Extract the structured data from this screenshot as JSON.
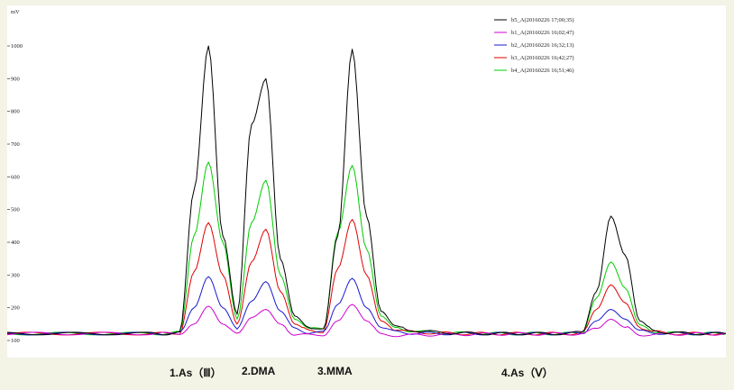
{
  "chart_data": {
    "type": "line",
    "ylabel": "mV",
    "ylim": [
      100,
      1000
    ],
    "yticks": [
      100,
      200,
      300,
      400,
      500,
      600,
      700,
      800,
      900,
      1000
    ],
    "grid": false,
    "legend_position": "top-right",
    "x": [
      0,
      20,
      40,
      60,
      80,
      100,
      110,
      120,
      130,
      140,
      150,
      160,
      170,
      180,
      190,
      200,
      210,
      220,
      230,
      240,
      250,
      260,
      270,
      280,
      290,
      300,
      310,
      320,
      330,
      340,
      350,
      360,
      370,
      380,
      390,
      400,
      410,
      420,
      430,
      440,
      450,
      460,
      470,
      480,
      490,
      500
    ],
    "series": [
      {
        "name": "b5_A(20160226 17;00;35)",
        "color": "#000000",
        "values": [
          121,
          121,
          121,
          121,
          121,
          121,
          121,
          124,
          560,
          1000,
          420,
          180,
          760,
          900,
          350,
          175,
          140,
          132,
          420,
          990,
          480,
          190,
          145,
          132,
          128,
          125,
          123,
          122,
          121,
          121,
          121,
          121,
          121,
          121,
          121,
          125,
          250,
          480,
          360,
          160,
          130,
          124,
          122,
          121,
          121,
          121
        ]
      },
      {
        "name": "b1_A(20160226 16;02;47)",
        "color": "#d000d0",
        "values": [
          121,
          121,
          121,
          121,
          121,
          121,
          121,
          122,
          150,
          205,
          150,
          118,
          170,
          195,
          150,
          118,
          116,
          118,
          160,
          210,
          160,
          118,
          116,
          116,
          117,
          118,
          118,
          119,
          119,
          120,
          120,
          120,
          120,
          120,
          120,
          121,
          135,
          165,
          140,
          118,
          118,
          119,
          120,
          120,
          120,
          121
        ]
      },
      {
        "name": "b2_A(20160226 16;32;13)",
        "color": "#1a1acc",
        "values": [
          121,
          121,
          121,
          121,
          121,
          121,
          121,
          122,
          200,
          295,
          200,
          138,
          220,
          280,
          190,
          138,
          124,
          124,
          210,
          290,
          200,
          140,
          126,
          123,
          122,
          121,
          121,
          121,
          121,
          121,
          121,
          121,
          121,
          121,
          121,
          122,
          160,
          195,
          165,
          128,
          123,
          122,
          121,
          121,
          121,
          121
        ]
      },
      {
        "name": "b3_A(20160226 16;42;27)",
        "color": "#e00000",
        "values": [
          121,
          121,
          121,
          121,
          121,
          121,
          121,
          123,
          310,
          460,
          300,
          150,
          340,
          440,
          250,
          150,
          130,
          128,
          320,
          470,
          300,
          160,
          134,
          126,
          124,
          122,
          122,
          121,
          121,
          121,
          121,
          121,
          121,
          121,
          121,
          123,
          195,
          270,
          215,
          140,
          126,
          122,
          121,
          121,
          121,
          121
        ]
      },
      {
        "name": "b4_A(20160226 16;51;46)",
        "color": "#00cc00",
        "values": [
          121,
          121,
          121,
          121,
          121,
          121,
          121,
          124,
          420,
          645,
          400,
          165,
          460,
          590,
          300,
          165,
          138,
          132,
          430,
          635,
          380,
          175,
          140,
          130,
          126,
          124,
          123,
          122,
          122,
          121,
          121,
          121,
          121,
          121,
          121,
          124,
          230,
          340,
          260,
          148,
          128,
          123,
          122,
          121,
          121,
          121
        ]
      }
    ],
    "annotations": [
      "1.As（Ⅲ）",
      "2.DMA",
      "3.MMA",
      "4.As（Ⅴ）"
    ]
  }
}
